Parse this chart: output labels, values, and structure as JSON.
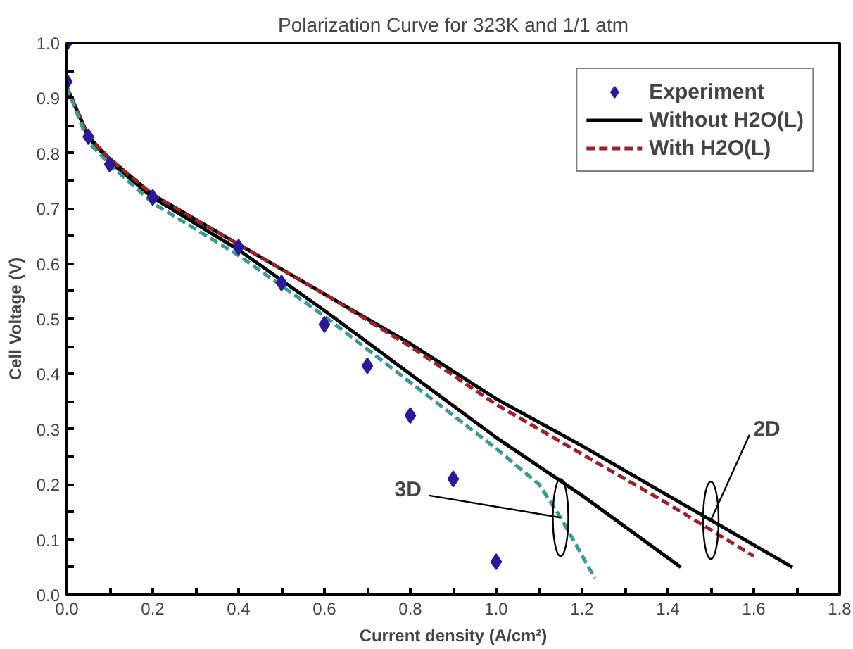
{
  "chart_data": {
    "type": "line",
    "title": "Polarization Curve for 323K and 1/1 atm",
    "xlabel": "Current density (A/cm²)",
    "ylabel": "Cell Voltage (V)",
    "xlim": [
      0,
      1.8
    ],
    "ylim": [
      0,
      1.0
    ],
    "xticks": [
      {
        "value": 0,
        "label": "0.0"
      },
      {
        "value": 0.1,
        "label": null
      },
      {
        "value": 0.2,
        "label": "0.2"
      },
      {
        "value": 0.3,
        "label": null
      },
      {
        "value": 0.4,
        "label": "0.4"
      },
      {
        "value": 0.5,
        "label": null
      },
      {
        "value": 0.6,
        "label": "0.6"
      },
      {
        "value": 0.7,
        "label": null
      },
      {
        "value": 0.8,
        "label": "0.8"
      },
      {
        "value": 0.9,
        "label": null
      },
      {
        "value": 1.0,
        "label": "1.0"
      },
      {
        "value": 1.1,
        "label": null
      },
      {
        "value": 1.2,
        "label": "1.2"
      },
      {
        "value": 1.3,
        "label": null
      },
      {
        "value": 1.4,
        "label": "1.4"
      },
      {
        "value": 1.5,
        "label": null
      },
      {
        "value": 1.6,
        "label": "1.6"
      },
      {
        "value": 1.7,
        "label": null
      },
      {
        "value": 1.8,
        "label": "1.8"
      }
    ],
    "yticks": [
      {
        "value": 0,
        "label": "0.0"
      },
      {
        "value": 0.05,
        "label": null
      },
      {
        "value": 0.1,
        "label": "0.1"
      },
      {
        "value": 0.15,
        "label": null
      },
      {
        "value": 0.2,
        "label": "0.2"
      },
      {
        "value": 0.25,
        "label": null
      },
      {
        "value": 0.3,
        "label": "0.3"
      },
      {
        "value": 0.35,
        "label": null
      },
      {
        "value": 0.4,
        "label": "0.4"
      },
      {
        "value": 0.45,
        "label": null
      },
      {
        "value": 0.5,
        "label": "0.5"
      },
      {
        "value": 0.55,
        "label": null
      },
      {
        "value": 0.6,
        "label": "0.6"
      },
      {
        "value": 0.65,
        "label": null
      },
      {
        "value": 0.7,
        "label": "0.7"
      },
      {
        "value": 0.75,
        "label": null
      },
      {
        "value": 0.8,
        "label": "0.8"
      },
      {
        "value": 0.85,
        "label": null
      },
      {
        "value": 0.9,
        "label": "0.9"
      },
      {
        "value": 0.95,
        "label": null
      },
      {
        "value": 1.0,
        "label": "1.0"
      }
    ],
    "grid": false,
    "legend": "top right",
    "series": [
      {
        "name": "Experiment",
        "type": "scatter",
        "marker": "diamond",
        "color": "#2a1a9a",
        "x": [
          0,
          0,
          0.05,
          0.1,
          0.2,
          0.4,
          0.5,
          0.6,
          0.7,
          0.8,
          0.9,
          1.0
        ],
        "values": [
          1.0,
          0.93,
          0.83,
          0.78,
          0.72,
          0.63,
          0.565,
          0.49,
          0.415,
          0.325,
          0.21,
          0.06
        ]
      },
      {
        "name": "Without H2O(L)",
        "line_style": "solid",
        "color": "#000000",
        "x": [
          0,
          0.05,
          0.1,
          0.2,
          0.4,
          0.6,
          0.8,
          1.0,
          1.2,
          1.4,
          1.69
        ],
        "values": [
          0.92,
          0.83,
          0.79,
          0.725,
          0.635,
          0.545,
          0.455,
          0.355,
          0.27,
          0.18,
          0.05
        ]
      },
      {
        "line_style": "solid",
        "color": "#000000",
        "x": [
          0,
          0.05,
          0.1,
          0.2,
          0.4,
          0.6,
          0.8,
          1.0,
          1.2,
          1.43
        ],
        "values": [
          0.92,
          0.83,
          0.785,
          0.72,
          0.625,
          0.515,
          0.4,
          0.285,
          0.18,
          0.05
        ]
      },
      {
        "name": "With H2O(L)",
        "line_style": "dashed",
        "color": "#a0202a",
        "x": [
          0,
          0.05,
          0.1,
          0.2,
          0.4,
          0.6,
          0.8,
          1.0,
          1.2,
          1.4,
          1.6
        ],
        "values": [
          0.92,
          0.83,
          0.79,
          0.725,
          0.635,
          0.545,
          0.45,
          0.345,
          0.255,
          0.165,
          0.07
        ]
      },
      {
        "line_style": "dashed",
        "color": "#3a9a9a",
        "x": [
          0,
          0.05,
          0.1,
          0.2,
          0.4,
          0.6,
          0.8,
          1.0,
          1.1,
          1.15,
          1.23
        ],
        "values": [
          0.92,
          0.82,
          0.78,
          0.71,
          0.615,
          0.505,
          0.385,
          0.265,
          0.2,
          0.14,
          0.03
        ]
      }
    ],
    "annotations": [
      {
        "text": "3D",
        "x": 1.15,
        "y": 0.14
      },
      {
        "text": "2D",
        "x": 1.5,
        "y": 0.135
      }
    ]
  }
}
